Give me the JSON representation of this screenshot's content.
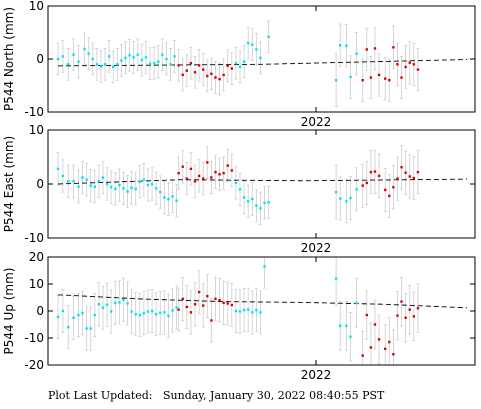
{
  "footer": {
    "label": "Plot Last Updated:",
    "timestamp": "Sunday, January 30, 2022 08:40:55 PST"
  },
  "colors": {
    "cyan_points": "#00e5ee",
    "red_points": "#dd0000",
    "error_bars": "#cccccc",
    "trend": "#000000"
  },
  "chart_data": [
    {
      "type": "scatter",
      "ylabel": "P544 North (mm)",
      "xlabel": "",
      "xtick_label": "2022",
      "ylim": [
        -10,
        10
      ],
      "yticks": [
        -10,
        0,
        10
      ],
      "xlim": [
        0,
        100
      ],
      "trend": [
        [
          0,
          -1.3
        ],
        [
          50,
          -1.0
        ],
        [
          100,
          -0.1
        ]
      ],
      "series": [
        {
          "color_key": "cyan",
          "points": [
            [
              0,
              0,
              3
            ],
            [
              1.2,
              0.5,
              3
            ],
            [
              2.5,
              -1,
              3
            ],
            [
              3.8,
              0.8,
              3
            ],
            [
              5,
              -0.5,
              3
            ],
            [
              6.5,
              1.9,
              3
            ],
            [
              7.5,
              1,
              3
            ],
            [
              8.5,
              0,
              3
            ],
            [
              9.5,
              -1,
              3
            ],
            [
              10.5,
              -1.4,
              3
            ],
            [
              11.5,
              -1,
              3
            ],
            [
              12.5,
              0.5,
              3
            ],
            [
              13.5,
              -1.5,
              3
            ],
            [
              14.5,
              -1,
              3
            ],
            [
              15.5,
              -0.3,
              3
            ],
            [
              16.5,
              0.2,
              3
            ],
            [
              17.5,
              0.7,
              3
            ],
            [
              18.5,
              0.3,
              3
            ],
            [
              19.5,
              0.8,
              3
            ],
            [
              20.5,
              -0.2,
              3
            ],
            [
              21.5,
              0.3,
              3
            ],
            [
              22.5,
              -0.9,
              3
            ],
            [
              23.5,
              -0.8,
              3
            ],
            [
              24.5,
              -0.5,
              3
            ],
            [
              25.5,
              0.8,
              3
            ],
            [
              26.5,
              0,
              3
            ],
            [
              27.5,
              -1,
              3
            ],
            [
              28.5,
              0.5,
              3
            ],
            [
              43.5,
              -0.8,
              3
            ],
            [
              44.5,
              -1.5,
              3
            ],
            [
              45.5,
              -0.5,
              3
            ],
            [
              46.5,
              3,
              3
            ],
            [
              47.5,
              2.7,
              3
            ],
            [
              48.5,
              1.8,
              3
            ],
            [
              49.5,
              0.2,
              3
            ],
            [
              51.5,
              4.2,
              3
            ],
            [
              68,
              -4,
              5
            ],
            [
              69,
              2.6,
              4
            ],
            [
              70.5,
              2.5,
              4
            ],
            [
              71.5,
              -3.4,
              4
            ],
            [
              73,
              1,
              4
            ]
          ]
        },
        {
          "color_key": "red",
          "points": [
            [
              29.5,
              -1.2,
              3
            ],
            [
              30.5,
              -3,
              3
            ],
            [
              31.5,
              -2.2,
              3
            ],
            [
              32.5,
              -0.8,
              3
            ],
            [
              33.5,
              -2.5,
              3
            ],
            [
              34.5,
              -1.2,
              3
            ],
            [
              35.5,
              -2,
              3
            ],
            [
              36.5,
              -3.2,
              3
            ],
            [
              37.5,
              -2.8,
              3
            ],
            [
              38.5,
              -3.5,
              3
            ],
            [
              39.5,
              -3.8,
              3
            ],
            [
              40.5,
              -3,
              3
            ],
            [
              41.5,
              -1.3,
              3
            ],
            [
              42.5,
              -1.8,
              3
            ],
            [
              74.5,
              -4,
              4
            ],
            [
              75.5,
              1.8,
              4
            ],
            [
              76.5,
              -3.5,
              4
            ],
            [
              77.5,
              2,
              4
            ],
            [
              78.5,
              -3,
              4
            ],
            [
              80,
              -3.7,
              4
            ],
            [
              81,
              -4,
              4
            ],
            [
              82,
              2.2,
              4
            ],
            [
              83,
              -1,
              4
            ],
            [
              84,
              -3.5,
              4
            ],
            [
              85,
              -1.5,
              4
            ],
            [
              86,
              -0.7,
              4
            ],
            [
              87,
              -1,
              4
            ],
            [
              88,
              -2,
              4
            ]
          ]
        }
      ]
    },
    {
      "type": "scatter",
      "ylabel": "P544 East (mm)",
      "xlabel": "",
      "xtick_label": "2022",
      "ylim": [
        -10,
        10
      ],
      "yticks": [
        -10,
        0,
        10
      ],
      "xlim": [
        0,
        100
      ],
      "trend": [
        [
          0,
          0
        ],
        [
          30,
          0.8
        ],
        [
          60,
          0.6
        ],
        [
          100,
          0.9
        ]
      ],
      "series": [
        {
          "color_key": "cyan",
          "points": [
            [
              0,
              2.8,
              3
            ],
            [
              1.2,
              1.5,
              3
            ],
            [
              2.5,
              0.5,
              3
            ],
            [
              3.8,
              0.5,
              3
            ],
            [
              5,
              -0.5,
              3
            ],
            [
              6,
              1.2,
              3
            ],
            [
              7,
              0.8,
              3
            ],
            [
              8,
              -0.3,
              3
            ],
            [
              9,
              -0.5,
              3
            ],
            [
              10,
              0.5,
              3
            ],
            [
              11,
              1.2,
              3
            ],
            [
              12,
              0,
              3
            ],
            [
              13,
              -0.6,
              3
            ],
            [
              14,
              -0.9,
              3
            ],
            [
              15,
              -0.2,
              3
            ],
            [
              16,
              -0.8,
              3
            ],
            [
              17,
              -1.4,
              3
            ],
            [
              18,
              -0.7,
              3
            ],
            [
              19,
              -0.9,
              3
            ],
            [
              20,
              0.4,
              3
            ],
            [
              21,
              0.8,
              3
            ],
            [
              22,
              -0.2,
              3
            ],
            [
              23,
              0,
              3
            ],
            [
              24,
              -0.8,
              3
            ],
            [
              25,
              -1.5,
              3
            ],
            [
              26,
              -2.5,
              3
            ],
            [
              27,
              -2.8,
              3
            ],
            [
              28,
              -2.3,
              3
            ],
            [
              29,
              -3.1,
              3
            ],
            [
              43.5,
              0.2,
              3
            ],
            [
              44.5,
              -1,
              3
            ],
            [
              45.5,
              -2.5,
              3
            ],
            [
              46.5,
              -3.2,
              3
            ],
            [
              47.5,
              -2.8,
              3
            ],
            [
              48.5,
              -4,
              3
            ],
            [
              49.5,
              -4.5,
              3
            ],
            [
              50.5,
              -3.5,
              3
            ],
            [
              51.5,
              -3.4,
              3
            ],
            [
              68,
              -1.5,
              5
            ],
            [
              69,
              -2.7,
              4
            ],
            [
              70.5,
              -3.2,
              4
            ],
            [
              71.5,
              -2.6,
              4
            ],
            [
              73,
              -1,
              4
            ]
          ]
        },
        {
          "color_key": "red",
          "points": [
            [
              29.5,
              2,
              3
            ],
            [
              30.5,
              3.2,
              3
            ],
            [
              31.5,
              1,
              3
            ],
            [
              32.5,
              2.8,
              3
            ],
            [
              33.5,
              0.5,
              3
            ],
            [
              34.5,
              1.5,
              3
            ],
            [
              35.5,
              1,
              3
            ],
            [
              36.5,
              4,
              3
            ],
            [
              37.5,
              1.2,
              3
            ],
            [
              38.5,
              2.2,
              3
            ],
            [
              39.5,
              1.8,
              3
            ],
            [
              40.5,
              2,
              3
            ],
            [
              41.5,
              3.4,
              3
            ],
            [
              42.5,
              2.5,
              3
            ],
            [
              74.5,
              -0.3,
              4
            ],
            [
              75.5,
              0.2,
              4
            ],
            [
              76.5,
              2.2,
              4
            ],
            [
              77.5,
              2.3,
              4
            ],
            [
              78.5,
              1.5,
              4
            ],
            [
              80,
              -1.1,
              4
            ],
            [
              81,
              -2.2,
              4
            ],
            [
              82,
              -0.6,
              4
            ],
            [
              83,
              1,
              4
            ],
            [
              84,
              3.1,
              4
            ],
            [
              85,
              2.1,
              4
            ],
            [
              86,
              1.4,
              4
            ],
            [
              87,
              1.1,
              4
            ],
            [
              88,
              2.2,
              4
            ]
          ]
        }
      ]
    },
    {
      "type": "scatter",
      "ylabel": "P544 Up (mm)",
      "xlabel": "",
      "xtick_label": "2022",
      "ylim": [
        -20,
        20
      ],
      "yticks": [
        -20,
        -10,
        0,
        10,
        20
      ],
      "xlim": [
        0,
        100
      ],
      "trend": [
        [
          0,
          6
        ],
        [
          20,
          4.5
        ],
        [
          40,
          3.5
        ],
        [
          60,
          3.2
        ],
        [
          80,
          2.5
        ],
        [
          100,
          1.2
        ]
      ],
      "series": [
        {
          "color_key": "cyan",
          "points": [
            [
              0,
              -2.2,
              8
            ],
            [
              1.2,
              0,
              8
            ],
            [
              2.5,
              -6,
              8
            ],
            [
              3.8,
              -2.5,
              8
            ],
            [
              5,
              -1.5,
              8
            ],
            [
              6,
              -0.8,
              8
            ],
            [
              7,
              -6.5,
              8
            ],
            [
              8,
              -6.5,
              8
            ],
            [
              9,
              -1.5,
              8
            ],
            [
              10,
              2.5,
              8
            ],
            [
              11,
              1.2,
              8
            ],
            [
              12,
              2.3,
              8
            ],
            [
              13,
              -0.2,
              8
            ],
            [
              14,
              3,
              8
            ],
            [
              15,
              3.2,
              8
            ],
            [
              16,
              4.2,
              8
            ],
            [
              17,
              2.8,
              8
            ],
            [
              18,
              -0.2,
              8
            ],
            [
              19,
              -1.2,
              8
            ],
            [
              20,
              -1.5,
              8
            ],
            [
              21,
              -0.8,
              8
            ],
            [
              22,
              -0.2,
              8
            ],
            [
              23,
              0,
              8
            ],
            [
              24,
              -1.2,
              8
            ],
            [
              25,
              -0.7,
              8
            ],
            [
              26,
              -0.5,
              8
            ],
            [
              27,
              -1.8,
              8
            ],
            [
              28,
              0.2,
              8
            ],
            [
              29,
              1.3,
              8
            ],
            [
              43.5,
              0,
              8
            ],
            [
              44.5,
              -0.2,
              8
            ],
            [
              45.5,
              0.3,
              8
            ],
            [
              46.5,
              0.5,
              8
            ],
            [
              47.5,
              -0.5,
              8
            ],
            [
              48.5,
              0.3,
              8
            ],
            [
              49.5,
              -0.5,
              8
            ],
            [
              50.5,
              16.5,
              8
            ],
            [
              68,
              12,
              10
            ],
            [
              69,
              -5.5,
              9
            ],
            [
              70.5,
              -5.5,
              9
            ],
            [
              71.5,
              -9.5,
              9
            ],
            [
              73,
              3,
              9
            ]
          ]
        },
        {
          "color_key": "red",
          "points": [
            [
              29.5,
              0.5,
              8
            ],
            [
              30.5,
              4.5,
              8
            ],
            [
              31.5,
              1.5,
              8
            ],
            [
              32.5,
              -0.5,
              8
            ],
            [
              33.5,
              2.5,
              8
            ],
            [
              34.5,
              7,
              8
            ],
            [
              35.5,
              2,
              8
            ],
            [
              36.5,
              5.5,
              8
            ],
            [
              37.5,
              -3.5,
              8
            ],
            [
              38.5,
              4.5,
              8
            ],
            [
              39.5,
              4,
              8
            ],
            [
              40.5,
              3,
              8
            ],
            [
              41.5,
              2.8,
              8
            ],
            [
              42.5,
              2.2,
              8
            ],
            [
              74.5,
              -16.5,
              9
            ],
            [
              75.5,
              -1.5,
              9
            ],
            [
              76.5,
              -13.5,
              9
            ],
            [
              77.5,
              -5,
              9
            ],
            [
              78.5,
              -10.5,
              9
            ],
            [
              80,
              -14,
              9
            ],
            [
              81,
              -11.5,
              9
            ],
            [
              82,
              -16,
              9
            ],
            [
              83,
              -1.7,
              9
            ],
            [
              84,
              3.5,
              9
            ],
            [
              85,
              -2.5,
              9
            ],
            [
              86,
              0.5,
              9
            ],
            [
              87,
              -2,
              9
            ],
            [
              88,
              1,
              9
            ]
          ]
        }
      ]
    }
  ]
}
